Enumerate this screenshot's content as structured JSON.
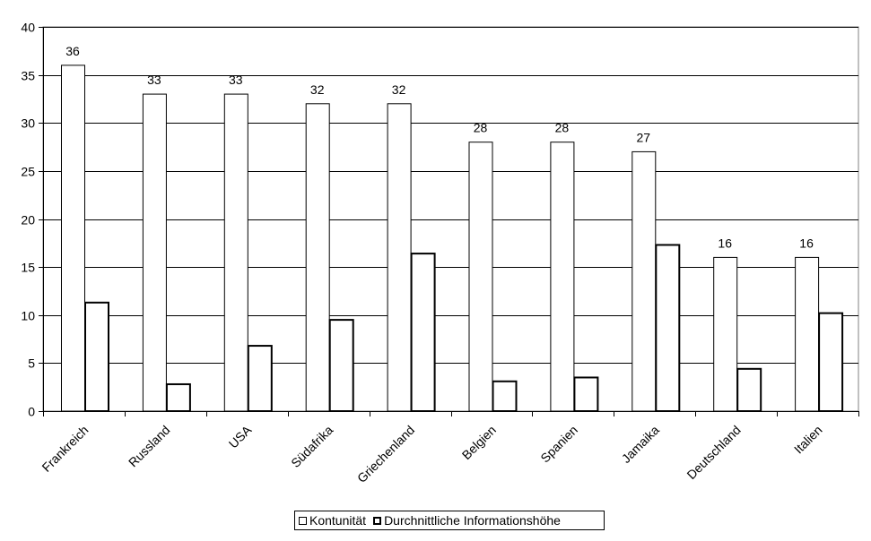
{
  "chart_data": {
    "type": "bar",
    "categories": [
      "Frankreich",
      "Russland",
      "USA",
      "Südafrika",
      "Griechenland",
      "Belgien",
      "Spanien",
      "Jamaika",
      "Deutschland",
      "Italien"
    ],
    "series": [
      {
        "name": "Kontunität",
        "values": [
          36,
          33,
          33,
          32,
          32,
          28,
          28,
          27,
          16,
          16
        ],
        "data_labels": true,
        "style": "thin"
      },
      {
        "name": "Durchnittliche Informationshöhe",
        "values": [
          11.3,
          2.8,
          6.8,
          9.5,
          16.4,
          3.1,
          3.5,
          17.3,
          4.4,
          10.2
        ],
        "data_labels": false,
        "style": "thick"
      }
    ],
    "yticks": [
      0,
      5,
      10,
      15,
      20,
      25,
      30,
      35,
      40
    ],
    "ylim": [
      0,
      40
    ],
    "grid": true,
    "legend_position": "bottom",
    "colors": {
      "bar_fill": "#ffffff",
      "bar_stroke": "#000000",
      "grid": "#000000"
    }
  }
}
